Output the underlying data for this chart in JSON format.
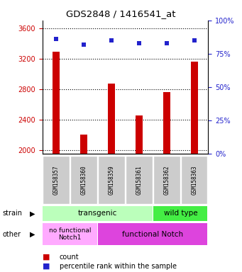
{
  "title": "GDS2848 / 1416541_at",
  "samples": [
    "GSM158357",
    "GSM158360",
    "GSM158359",
    "GSM158361",
    "GSM158362",
    "GSM158363"
  ],
  "counts": [
    3290,
    2200,
    2870,
    2450,
    2760,
    3160
  ],
  "percentiles": [
    86,
    82,
    85,
    83,
    83,
    85
  ],
  "ylim_left": [
    1950,
    3700
  ],
  "ylim_right": [
    0,
    100
  ],
  "yticks_left": [
    2000,
    2400,
    2800,
    3200,
    3600
  ],
  "yticks_right": [
    0,
    25,
    50,
    75,
    100
  ],
  "bar_color": "#cc0000",
  "dot_color": "#2222cc",
  "strain_color_transgenic": "#bbffbb",
  "strain_color_wildtype": "#44ee44",
  "other_color_nofunc": "#ffaaff",
  "other_color_func": "#dd44dd",
  "bg_color": "#ffffff",
  "tick_color_left": "#cc0000",
  "tick_color_right": "#2222cc",
  "bar_width": 0.25,
  "marker_size": 5
}
